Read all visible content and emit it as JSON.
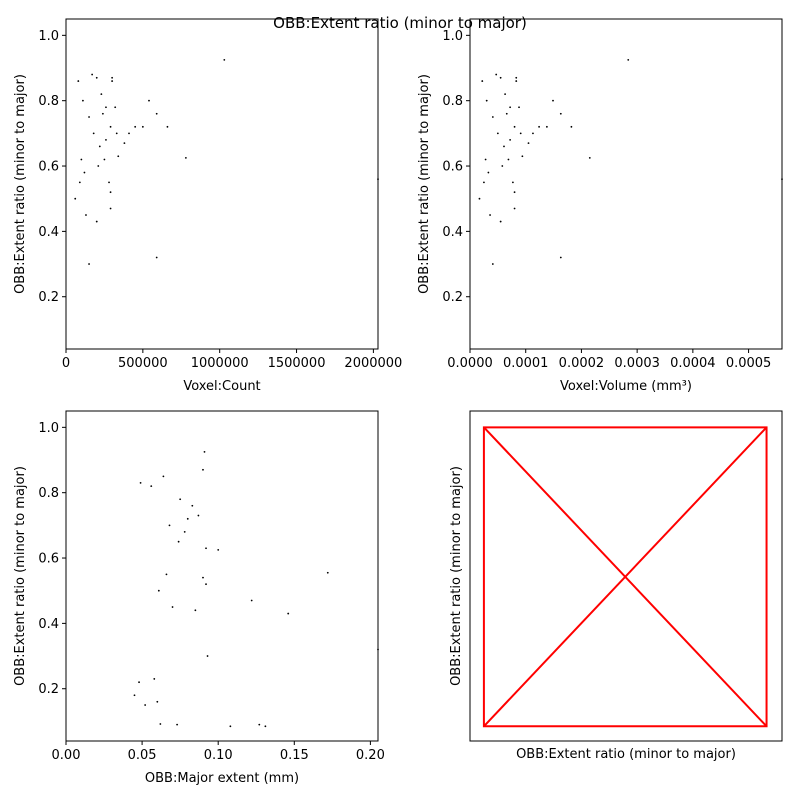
{
  "title": "OBB:Extent ratio (minor to major)",
  "colors": {
    "points": "#000000",
    "diagonal": "#ff0000",
    "frame": "#000000"
  },
  "chart_data": [
    {
      "type": "scatter",
      "xlabel": "Voxel:Count",
      "ylabel": "OBB:Extent ratio (minor to major)",
      "xlim": [
        0,
        2030000
      ],
      "ylim": [
        0.04,
        1.05
      ],
      "xticks": [
        0,
        500000,
        1000000,
        1500000,
        2000000
      ],
      "xtick_labels": [
        "0",
        "500000",
        "1000000",
        "1500000",
        "2000000"
      ],
      "yticks": [
        0.2,
        0.4,
        0.6,
        0.8,
        1.0
      ],
      "ytick_labels": [
        "0.2",
        "0.4",
        "0.6",
        "0.8",
        "1.0"
      ],
      "points": [
        [
          1030000,
          0.925
        ],
        [
          540000,
          0.8
        ],
        [
          590000,
          0.76
        ],
        [
          660000,
          0.72
        ],
        [
          780000,
          0.625
        ],
        [
          590000,
          0.32
        ],
        [
          2030000,
          0.56
        ],
        [
          450000,
          0.72
        ],
        [
          500000,
          0.72
        ],
        [
          410000,
          0.7
        ],
        [
          300000,
          0.87
        ],
        [
          300000,
          0.86
        ],
        [
          170000,
          0.88
        ],
        [
          200000,
          0.87
        ],
        [
          230000,
          0.82
        ],
        [
          260000,
          0.78
        ],
        [
          320000,
          0.78
        ],
        [
          290000,
          0.72
        ],
        [
          330000,
          0.7
        ],
        [
          380000,
          0.67
        ],
        [
          220000,
          0.66
        ],
        [
          250000,
          0.62
        ],
        [
          340000,
          0.63
        ],
        [
          210000,
          0.6
        ],
        [
          280000,
          0.55
        ],
        [
          290000,
          0.52
        ],
        [
          200000,
          0.43
        ],
        [
          290000,
          0.47
        ],
        [
          130000,
          0.45
        ],
        [
          150000,
          0.3
        ],
        [
          100000,
          0.62
        ],
        [
          90000,
          0.55
        ],
        [
          60000,
          0.5
        ],
        [
          120000,
          0.58
        ],
        [
          150000,
          0.75
        ],
        [
          110000,
          0.8
        ],
        [
          80000,
          0.86
        ],
        [
          180000,
          0.7
        ],
        [
          260000,
          0.68
        ],
        [
          240000,
          0.76
        ]
      ]
    },
    {
      "type": "scatter",
      "xlabel": "Voxel:Volume (mm³)",
      "ylabel": "OBB:Extent ratio (minor to major)",
      "xlim": [
        0,
        0.00056
      ],
      "ylim": [
        0.04,
        1.05
      ],
      "xticks": [
        0,
        0.0001,
        0.0002,
        0.0003,
        0.0004,
        0.0005
      ],
      "xtick_labels": [
        "0.0000",
        "0.0001",
        "0.0002",
        "0.0003",
        "0.0004",
        "0.0005"
      ],
      "yticks": [
        0.2,
        0.4,
        0.6,
        0.8,
        1.0
      ],
      "ytick_labels": [
        "0.2",
        "0.4",
        "0.6",
        "0.8",
        "1.0"
      ],
      "points": [
        [
          0.000284,
          0.925
        ],
        [
          0.000149,
          0.8
        ],
        [
          0.000163,
          0.76
        ],
        [
          0.000182,
          0.72
        ],
        [
          0.000215,
          0.625
        ],
        [
          0.000163,
          0.32
        ],
        [
          0.00056,
          0.56
        ],
        [
          0.000124,
          0.72
        ],
        [
          0.000138,
          0.72
        ],
        [
          0.000113,
          0.7
        ],
        [
          8.3e-05,
          0.87
        ],
        [
          8.3e-05,
          0.86
        ],
        [
          4.7e-05,
          0.88
        ],
        [
          5.5e-05,
          0.87
        ],
        [
          6.3e-05,
          0.82
        ],
        [
          7.2e-05,
          0.78
        ],
        [
          8.8e-05,
          0.78
        ],
        [
          8e-05,
          0.72
        ],
        [
          9.1e-05,
          0.7
        ],
        [
          0.000105,
          0.67
        ],
        [
          6.1e-05,
          0.66
        ],
        [
          6.9e-05,
          0.62
        ],
        [
          9.4e-05,
          0.63
        ],
        [
          5.8e-05,
          0.6
        ],
        [
          7.7e-05,
          0.55
        ],
        [
          8e-05,
          0.52
        ],
        [
          5.5e-05,
          0.43
        ],
        [
          8e-05,
          0.47
        ],
        [
          3.6e-05,
          0.45
        ],
        [
          4.1e-05,
          0.3
        ],
        [
          2.8e-05,
          0.62
        ],
        [
          2.5e-05,
          0.55
        ],
        [
          1.7e-05,
          0.5
        ],
        [
          3.3e-05,
          0.58
        ],
        [
          4.1e-05,
          0.75
        ],
        [
          3e-05,
          0.8
        ],
        [
          2.2e-05,
          0.86
        ],
        [
          5e-05,
          0.7
        ],
        [
          7.2e-05,
          0.68
        ],
        [
          6.6e-05,
          0.76
        ]
      ]
    },
    {
      "type": "scatter",
      "xlabel": "OBB:Major extent (mm)",
      "ylabel": "OBB:Extent ratio (minor to major)",
      "xlim": [
        0,
        0.205
      ],
      "ylim": [
        0.04,
        1.05
      ],
      "xticks": [
        0,
        0.05,
        0.1,
        0.15,
        0.2
      ],
      "xtick_labels": [
        "0.00",
        "0.05",
        "0.10",
        "0.15",
        "0.20"
      ],
      "yticks": [
        0.2,
        0.4,
        0.6,
        0.8,
        1.0
      ],
      "ytick_labels": [
        "0.2",
        "0.4",
        "0.6",
        "0.8",
        "1.0"
      ],
      "points": [
        [
          0.091,
          0.925
        ],
        [
          0.09,
          0.87
        ],
        [
          0.075,
          0.78
        ],
        [
          0.083,
          0.76
        ],
        [
          0.08,
          0.72
        ],
        [
          0.087,
          0.73
        ],
        [
          0.092,
          0.63
        ],
        [
          0.1,
          0.625
        ],
        [
          0.09,
          0.54
        ],
        [
          0.092,
          0.52
        ],
        [
          0.093,
          0.3
        ],
        [
          0.122,
          0.47
        ],
        [
          0.146,
          0.43
        ],
        [
          0.172,
          0.555
        ],
        [
          0.205,
          0.32
        ],
        [
          0.108,
          0.085
        ],
        [
          0.127,
          0.09
        ],
        [
          0.131,
          0.085
        ],
        [
          0.073,
          0.09
        ],
        [
          0.062,
          0.092
        ],
        [
          0.052,
          0.15
        ],
        [
          0.06,
          0.16
        ],
        [
          0.045,
          0.18
        ],
        [
          0.048,
          0.22
        ],
        [
          0.058,
          0.23
        ],
        [
          0.07,
          0.45
        ],
        [
          0.085,
          0.44
        ],
        [
          0.066,
          0.55
        ],
        [
          0.061,
          0.5
        ],
        [
          0.074,
          0.65
        ],
        [
          0.068,
          0.7
        ],
        [
          0.078,
          0.68
        ],
        [
          0.064,
          0.85
        ],
        [
          0.056,
          0.82
        ],
        [
          0.049,
          0.83
        ]
      ]
    },
    {
      "type": "scatter",
      "xlabel": "OBB:Extent ratio (minor to major)",
      "ylabel": "OBB:Extent ratio (minor to major)",
      "xlim": [
        0.04,
        1.05
      ],
      "ylim": [
        0.04,
        1.05
      ],
      "diagonal_box": {
        "min": 0.085,
        "max": 1.0
      },
      "points": []
    }
  ]
}
